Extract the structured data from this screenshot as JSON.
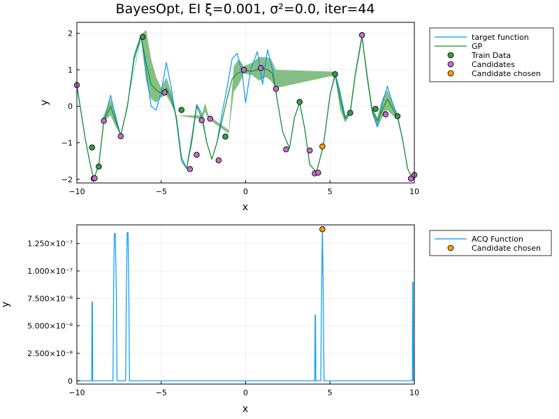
{
  "chart_data": [
    {
      "type": "line",
      "title": "BayesOpt, EI ξ=0.001, σ²=0.0, iter=44",
      "xlabel": "x",
      "ylabel": "y",
      "xlim": [
        -10,
        10
      ],
      "ylim": [
        -2.1,
        2.3
      ],
      "xticks": [
        -10,
        -5,
        0,
        5,
        10
      ],
      "xtick_labels": [
        "−10",
        "−5",
        "0",
        "5",
        "10"
      ],
      "yticks": [
        -2,
        -1,
        0,
        1,
        2
      ],
      "ytick_labels": [
        "−2",
        "−1",
        "0",
        "1",
        "2"
      ],
      "grid": true,
      "legend_position": "outside-top-right",
      "series": [
        {
          "name": "target function",
          "kind": "line",
          "color": "#009AFA",
          "x": [
            -10,
            -9.5,
            -9.2,
            -9.0,
            -8.7,
            -8.4,
            -8.0,
            -7.7,
            -7.4,
            -7.0,
            -6.6,
            -6.2,
            -5.9,
            -5.6,
            -5.3,
            -5.0,
            -4.7,
            -4.4,
            -4.1,
            -3.8,
            -3.5,
            -3.2,
            -2.9,
            -2.6,
            -2.3,
            -2.0,
            -1.7,
            -1.4,
            -1.1,
            -0.8,
            -0.5,
            -0.2,
            0.0,
            0.3,
            0.7,
            1.0,
            1.3,
            1.6,
            1.9,
            2.2,
            2.6,
            2.9,
            3.2,
            3.5,
            3.8,
            4.2,
            4.6,
            5.0,
            5.3,
            5.6,
            5.9,
            6.2,
            6.5,
            6.9,
            7.2,
            7.5,
            7.8,
            8.1,
            8.4,
            8.7,
            9.0,
            9.3,
            9.6,
            9.9,
            10
          ],
          "y": [
            0.6,
            -0.9,
            -1.6,
            -2.0,
            -1.6,
            -0.4,
            0.3,
            -0.3,
            -0.8,
            0.0,
            1.4,
            1.95,
            1.0,
            0.0,
            -0.1,
            0.4,
            1.2,
            0.5,
            -0.4,
            -1.5,
            -1.7,
            -0.9,
            0.05,
            -0.2,
            -1.0,
            -1.45,
            -1.0,
            -0.2,
            0.5,
            1.3,
            1.45,
            0.9,
            0.1,
            1.0,
            1.5,
            0.6,
            1.55,
            1.0,
            0.1,
            -0.7,
            -1.15,
            -0.3,
            0.1,
            -0.6,
            -1.6,
            -1.8,
            -1.1,
            0.3,
            0.9,
            0.4,
            -0.3,
            -0.15,
            0.9,
            1.95,
            0.8,
            -0.15,
            -0.55,
            0.1,
            0.55,
            0.1,
            -0.25,
            -0.9,
            -1.7,
            -2.0,
            -1.8
          ]
        },
        {
          "name": "GP",
          "kind": "line",
          "color": "#228B22",
          "x": [
            -10,
            -9.5,
            -9.2,
            -9.0,
            -8.7,
            -8.4,
            -8.0,
            -7.7,
            -7.4,
            -7.0,
            -6.6,
            -6.2,
            -5.9,
            -5.6,
            -5.3,
            -5.0,
            -4.7,
            -4.4,
            -4.1,
            -3.8,
            -3.5,
            -3.2,
            -2.9,
            -2.6,
            -2.3,
            -2.0,
            -1.7,
            -1.4,
            -1.1,
            -0.8,
            -0.5,
            -0.2,
            0.0,
            0.3,
            0.7,
            1.0,
            1.3,
            1.6,
            1.9,
            2.2,
            2.6,
            2.9,
            3.2,
            3.5,
            3.8,
            4.2,
            4.6,
            5.0,
            5.3,
            5.6,
            5.9,
            6.2,
            6.5,
            6.9,
            7.2,
            7.5,
            7.8,
            8.1,
            8.4,
            8.7,
            9.0,
            9.3,
            9.6,
            9.9,
            10
          ],
          "y": [
            0.55,
            -0.9,
            -1.6,
            -2.0,
            -1.6,
            -0.4,
            0.0,
            -0.4,
            -0.8,
            0.0,
            1.3,
            1.9,
            1.2,
            0.6,
            0.45,
            0.35,
            0.5,
            0.2,
            -0.3,
            -1.4,
            -1.7,
            -1.0,
            0.0,
            -0.3,
            -1.0,
            -1.45,
            -1.0,
            -0.4,
            0.2,
            0.75,
            0.9,
            0.95,
            1.0,
            0.95,
            1.0,
            1.05,
            1.0,
            0.9,
            0.1,
            -0.7,
            -1.15,
            -0.3,
            0.1,
            -0.6,
            -1.6,
            -1.8,
            -1.1,
            0.3,
            0.85,
            0.2,
            -0.35,
            -0.2,
            0.9,
            1.9,
            0.8,
            -0.1,
            -0.4,
            -0.1,
            0.2,
            -0.05,
            -0.3,
            -0.9,
            -1.7,
            -2.0,
            -1.85
          ]
        }
      ],
      "band": {
        "name": "GP uncertainty",
        "color": "#228B22",
        "x": [
          -8.5,
          -8.0,
          -7.7,
          -7.4,
          -6.2,
          -5.9,
          -5.6,
          -5.3,
          -5.0,
          -4.7,
          -4.4,
          -4.1,
          -2.6,
          -2.4,
          -2.2,
          -1.0,
          -0.7,
          -0.4,
          -0.1,
          0.4,
          0.8,
          1.2,
          1.5,
          1.8,
          5.3,
          5.6,
          5.9,
          6.2,
          6.9,
          7.5,
          7.8,
          8.1,
          8.4,
          8.7,
          9.0
        ],
        "lo": [
          -0.45,
          -0.25,
          -0.55,
          -0.8,
          1.85,
          0.7,
          0.2,
          0.1,
          0.25,
          0.3,
          0.05,
          -0.25,
          -0.35,
          -0.15,
          -0.35,
          -0.75,
          0.4,
          0.6,
          0.9,
          0.85,
          0.7,
          0.8,
          0.7,
          0.5,
          0.85,
          -0.1,
          -0.45,
          -0.2,
          1.85,
          -0.2,
          -0.6,
          -0.3,
          -0.1,
          -0.25,
          -0.3
        ],
        "hi": [
          -0.35,
          0.2,
          -0.2,
          -0.8,
          1.95,
          2.1,
          1.3,
          0.8,
          0.5,
          0.8,
          0.4,
          -0.25,
          -0.25,
          0.1,
          -0.25,
          -0.65,
          1.1,
          1.3,
          1.1,
          1.2,
          1.35,
          1.35,
          1.3,
          1.0,
          0.95,
          0.4,
          -0.25,
          -0.2,
          1.95,
          0.0,
          -0.3,
          0.2,
          0.45,
          0.1,
          -0.3
        ]
      },
      "points": [
        {
          "name": "Train Data",
          "color": "#3A9B4A",
          "x": [
            -9.1,
            -8.7,
            -6.1,
            -3.8,
            -1.2,
            3.2,
            5.3,
            6.2,
            7.7,
            9.0
          ],
          "y": [
            -1.13,
            -1.65,
            1.9,
            -0.1,
            -0.83,
            0.12,
            0.88,
            -0.18,
            -0.07,
            -0.27
          ]
        },
        {
          "name": "Candidates",
          "color": "#C56ACB",
          "x": [
            -10.0,
            -8.4,
            -7.4,
            -4.8,
            -3.3,
            -2.9,
            -2.6,
            -2.1,
            -1.6,
            -0.1,
            0.9,
            1.8,
            2.4,
            3.8,
            4.1,
            4.3,
            6.9,
            8.3,
            9.8,
            10.0,
            -9.0,
            -8.95
          ],
          "y": [
            0.58,
            -0.4,
            -0.82,
            0.38,
            -1.72,
            -1.33,
            -0.38,
            -0.34,
            -1.48,
            1.0,
            1.05,
            0.48,
            -1.18,
            -1.21,
            -1.84,
            -1.82,
            1.95,
            -0.22,
            -1.98,
            -1.88,
            -1.98,
            -1.97
          ]
        },
        {
          "name": "Candidate chosen",
          "color": "#FF9E00",
          "x": [
            4.55
          ],
          "y": [
            -1.1
          ]
        }
      ]
    },
    {
      "type": "line",
      "title": "",
      "xlabel": "x",
      "ylabel": "y",
      "xlim": [
        -10,
        10
      ],
      "ylim": [
        -3e-09,
        1.42e-07
      ],
      "xticks": [
        -10,
        -5,
        0,
        5,
        10
      ],
      "xtick_labels": [
        "−10",
        "−5",
        "0",
        "5",
        "10"
      ],
      "yticks": [
        0,
        2.5e-08,
        5e-08,
        7.5e-08,
        1e-07,
        1.25e-07
      ],
      "ytick_labels": [
        "0",
        "2.500×10⁻⁸",
        "5.000×10⁻⁸",
        "7.500×10⁻⁸",
        "1.000×10⁻⁷",
        "1.250×10⁻⁷"
      ],
      "grid": true,
      "legend_position": "outside-top-right",
      "series": [
        {
          "name": "ACQ Function",
          "kind": "line",
          "color": "#009AFA",
          "x": [
            -10,
            -9.12,
            -9.1,
            -9.08,
            -9.06,
            -7.86,
            -7.82,
            -7.78,
            -7.72,
            -7.66,
            -7.62,
            -7.11,
            -7.07,
            -7.02,
            -6.97,
            -6.92,
            -6.88,
            4.1,
            4.12,
            4.14,
            4.16,
            4.45,
            4.5,
            4.55,
            4.6,
            4.65,
            9.88,
            9.9,
            9.92,
            9.94,
            10
          ],
          "y": [
            0,
            0,
            7.2e-08,
            7.2e-08,
            0,
            0,
            8e-08,
            1.34e-07,
            1.34e-07,
            8e-08,
            0,
            0,
            8e-08,
            1.35e-07,
            1.35e-07,
            8e-08,
            0,
            0,
            6e-08,
            6e-08,
            0,
            0,
            8e-08,
            1.38e-07,
            8e-08,
            0,
            0,
            9e-08,
            9e-08,
            0,
            0
          ]
        }
      ],
      "points": [
        {
          "name": "Candidate chosen",
          "color": "#FF9E00",
          "x": [
            4.55
          ],
          "y": [
            1.38e-07
          ]
        }
      ]
    }
  ]
}
